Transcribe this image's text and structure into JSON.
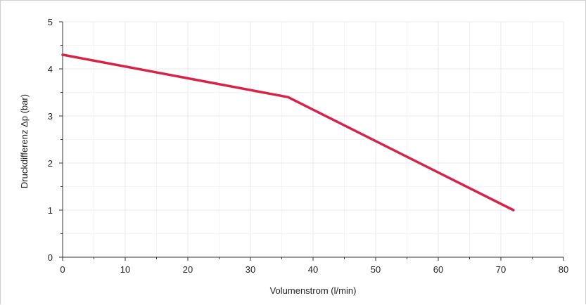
{
  "chart_data": {
    "type": "line",
    "title": "",
    "xlabel": "Volumenstrom (l/min)",
    "ylabel": "Druckdifferenz Δp (bar)",
    "xlim": [
      0,
      80
    ],
    "ylim": [
      0,
      5
    ],
    "x_ticks": [
      0,
      10,
      20,
      30,
      40,
      50,
      60,
      70,
      80
    ],
    "y_ticks": [
      0,
      1,
      2,
      3,
      4,
      5
    ],
    "x_tick_labels": [
      "0",
      "10",
      "20",
      "30",
      "40",
      "50",
      "60",
      "70",
      "80"
    ],
    "y_tick_labels": [
      "0",
      "1",
      "2",
      "3",
      "4",
      "5"
    ],
    "grid": true,
    "legend": "none",
    "series": [
      {
        "color": "#d7234a",
        "points": [
          {
            "x": 0,
            "y": 4.3
          },
          {
            "x": 36,
            "y": 3.4
          },
          {
            "x": 72,
            "y": 1.0
          }
        ]
      }
    ],
    "colors": {
      "grid": "#e9e9e9",
      "axis": "#333333",
      "line": "#d7234a"
    }
  }
}
